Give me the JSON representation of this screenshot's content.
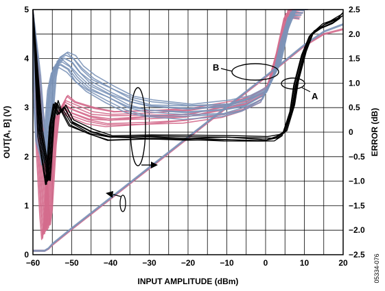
{
  "chart_data": {
    "type": "line",
    "figure_id": "05334-076",
    "xlabel": "INPUT AMPLITUDE (dBm)",
    "ylabel_left": "OUT[A, B] (V)",
    "ylabel_right": "ERROR (dB)",
    "xlim": [
      -60,
      20
    ],
    "ylim_left": [
      0,
      5
    ],
    "ylim_right": [
      -2.5,
      2.5
    ],
    "x_ticks": [
      -60,
      -50,
      -40,
      -30,
      -20,
      -10,
      0,
      10,
      20
    ],
    "y_ticks_left": [
      0,
      1,
      2,
      3,
      4,
      5
    ],
    "y_ticks_right": [
      -2.5,
      -2.0,
      -1.5,
      -1.0,
      -0.5,
      0,
      0.5,
      1.0,
      1.5,
      2.0,
      2.5
    ],
    "x_tick_labels": [
      "−60",
      "−50",
      "−40",
      "−30",
      "−20",
      "−10",
      "0",
      "10",
      "20"
    ],
    "y_tick_labels_left": [
      "0",
      "1",
      "2",
      "3",
      "4",
      "5"
    ],
    "y_tick_labels_right": [
      "−2.5",
      "−2.0",
      "−1.5",
      "−1.0",
      "−0.5",
      "0",
      "0.5",
      "1.0",
      "1.5",
      "2.0",
      "2.5"
    ],
    "grid": true,
    "annotations": [
      "A",
      "B"
    ],
    "colors": {
      "A": "#d46a8c",
      "B": "#7b93b8",
      "ref": "#000000"
    },
    "series": [
      {
        "group": "A",
        "axis": "left",
        "color": "#d46a8c",
        "x": [
          -60,
          -57,
          -56,
          -55,
          -50,
          -40,
          -30,
          -20,
          -10,
          0,
          5,
          10,
          15,
          20
        ],
        "y": [
          0.08,
          0.08,
          0.12,
          0.2,
          0.52,
          1.14,
          1.76,
          2.38,
          3.0,
          3.62,
          3.94,
          4.26,
          4.5,
          4.6
        ]
      },
      {
        "group": "B",
        "axis": "left",
        "color": "#7b93b8",
        "x": [
          -60,
          -57,
          -56,
          -55,
          -50,
          -40,
          -30,
          -20,
          -10,
          0,
          5,
          10,
          15,
          20
        ],
        "y": [
          0.08,
          0.08,
          0.13,
          0.22,
          0.54,
          1.16,
          1.78,
          2.4,
          3.02,
          3.64,
          3.96,
          4.28,
          4.55,
          4.7
        ]
      },
      {
        "group": "A",
        "axis": "right",
        "color": "#d46a8c",
        "x": [
          -60,
          -58,
          -57,
          -56.5,
          -56,
          -55,
          -54,
          -52,
          -50,
          -45,
          -40,
          -30,
          -20,
          -10,
          -5,
          0,
          2,
          4,
          6,
          8,
          10
        ],
        "y": [
          2.5,
          0.0,
          -1.5,
          -2.0,
          -1.7,
          -0.4,
          0.3,
          0.6,
          0.5,
          0.35,
          0.3,
          0.32,
          0.35,
          0.5,
          0.6,
          0.8,
          1.2,
          1.8,
          2.5,
          2.5,
          2.5
        ]
      },
      {
        "group": "B",
        "axis": "right",
        "color": "#7b93b8",
        "x": [
          -60,
          -59,
          -58,
          -57,
          -56.5,
          -56,
          -55,
          -54,
          -52,
          -50,
          -48,
          -45,
          -40,
          -35,
          -30,
          -20,
          -10,
          -5,
          0,
          3,
          5,
          7,
          10
        ],
        "y": [
          2.5,
          1.0,
          0.0,
          -0.3,
          -0.5,
          0.0,
          1.0,
          1.4,
          1.5,
          1.4,
          1.2,
          1.0,
          0.8,
          0.6,
          0.5,
          0.45,
          0.5,
          0.6,
          0.8,
          1.3,
          2.0,
          2.5,
          2.5
        ]
      },
      {
        "group": "ref",
        "axis": "right",
        "color": "#000000",
        "x": [
          -60,
          -58,
          -57,
          -56,
          -55,
          -54,
          -53,
          -52,
          -50,
          -45,
          -40,
          -30,
          -20,
          -10,
          0,
          3,
          5,
          7,
          8,
          10,
          12,
          15,
          18,
          20
        ],
        "y": [
          2.5,
          0.0,
          -0.5,
          -1.0,
          0.2,
          0.6,
          0.4,
          0.5,
          0.2,
          0.0,
          -0.1,
          -0.1,
          -0.1,
          -0.12,
          -0.15,
          -0.1,
          0.0,
          0.5,
          1.0,
          1.6,
          2.0,
          2.2,
          2.3,
          2.4
        ]
      }
    ]
  }
}
